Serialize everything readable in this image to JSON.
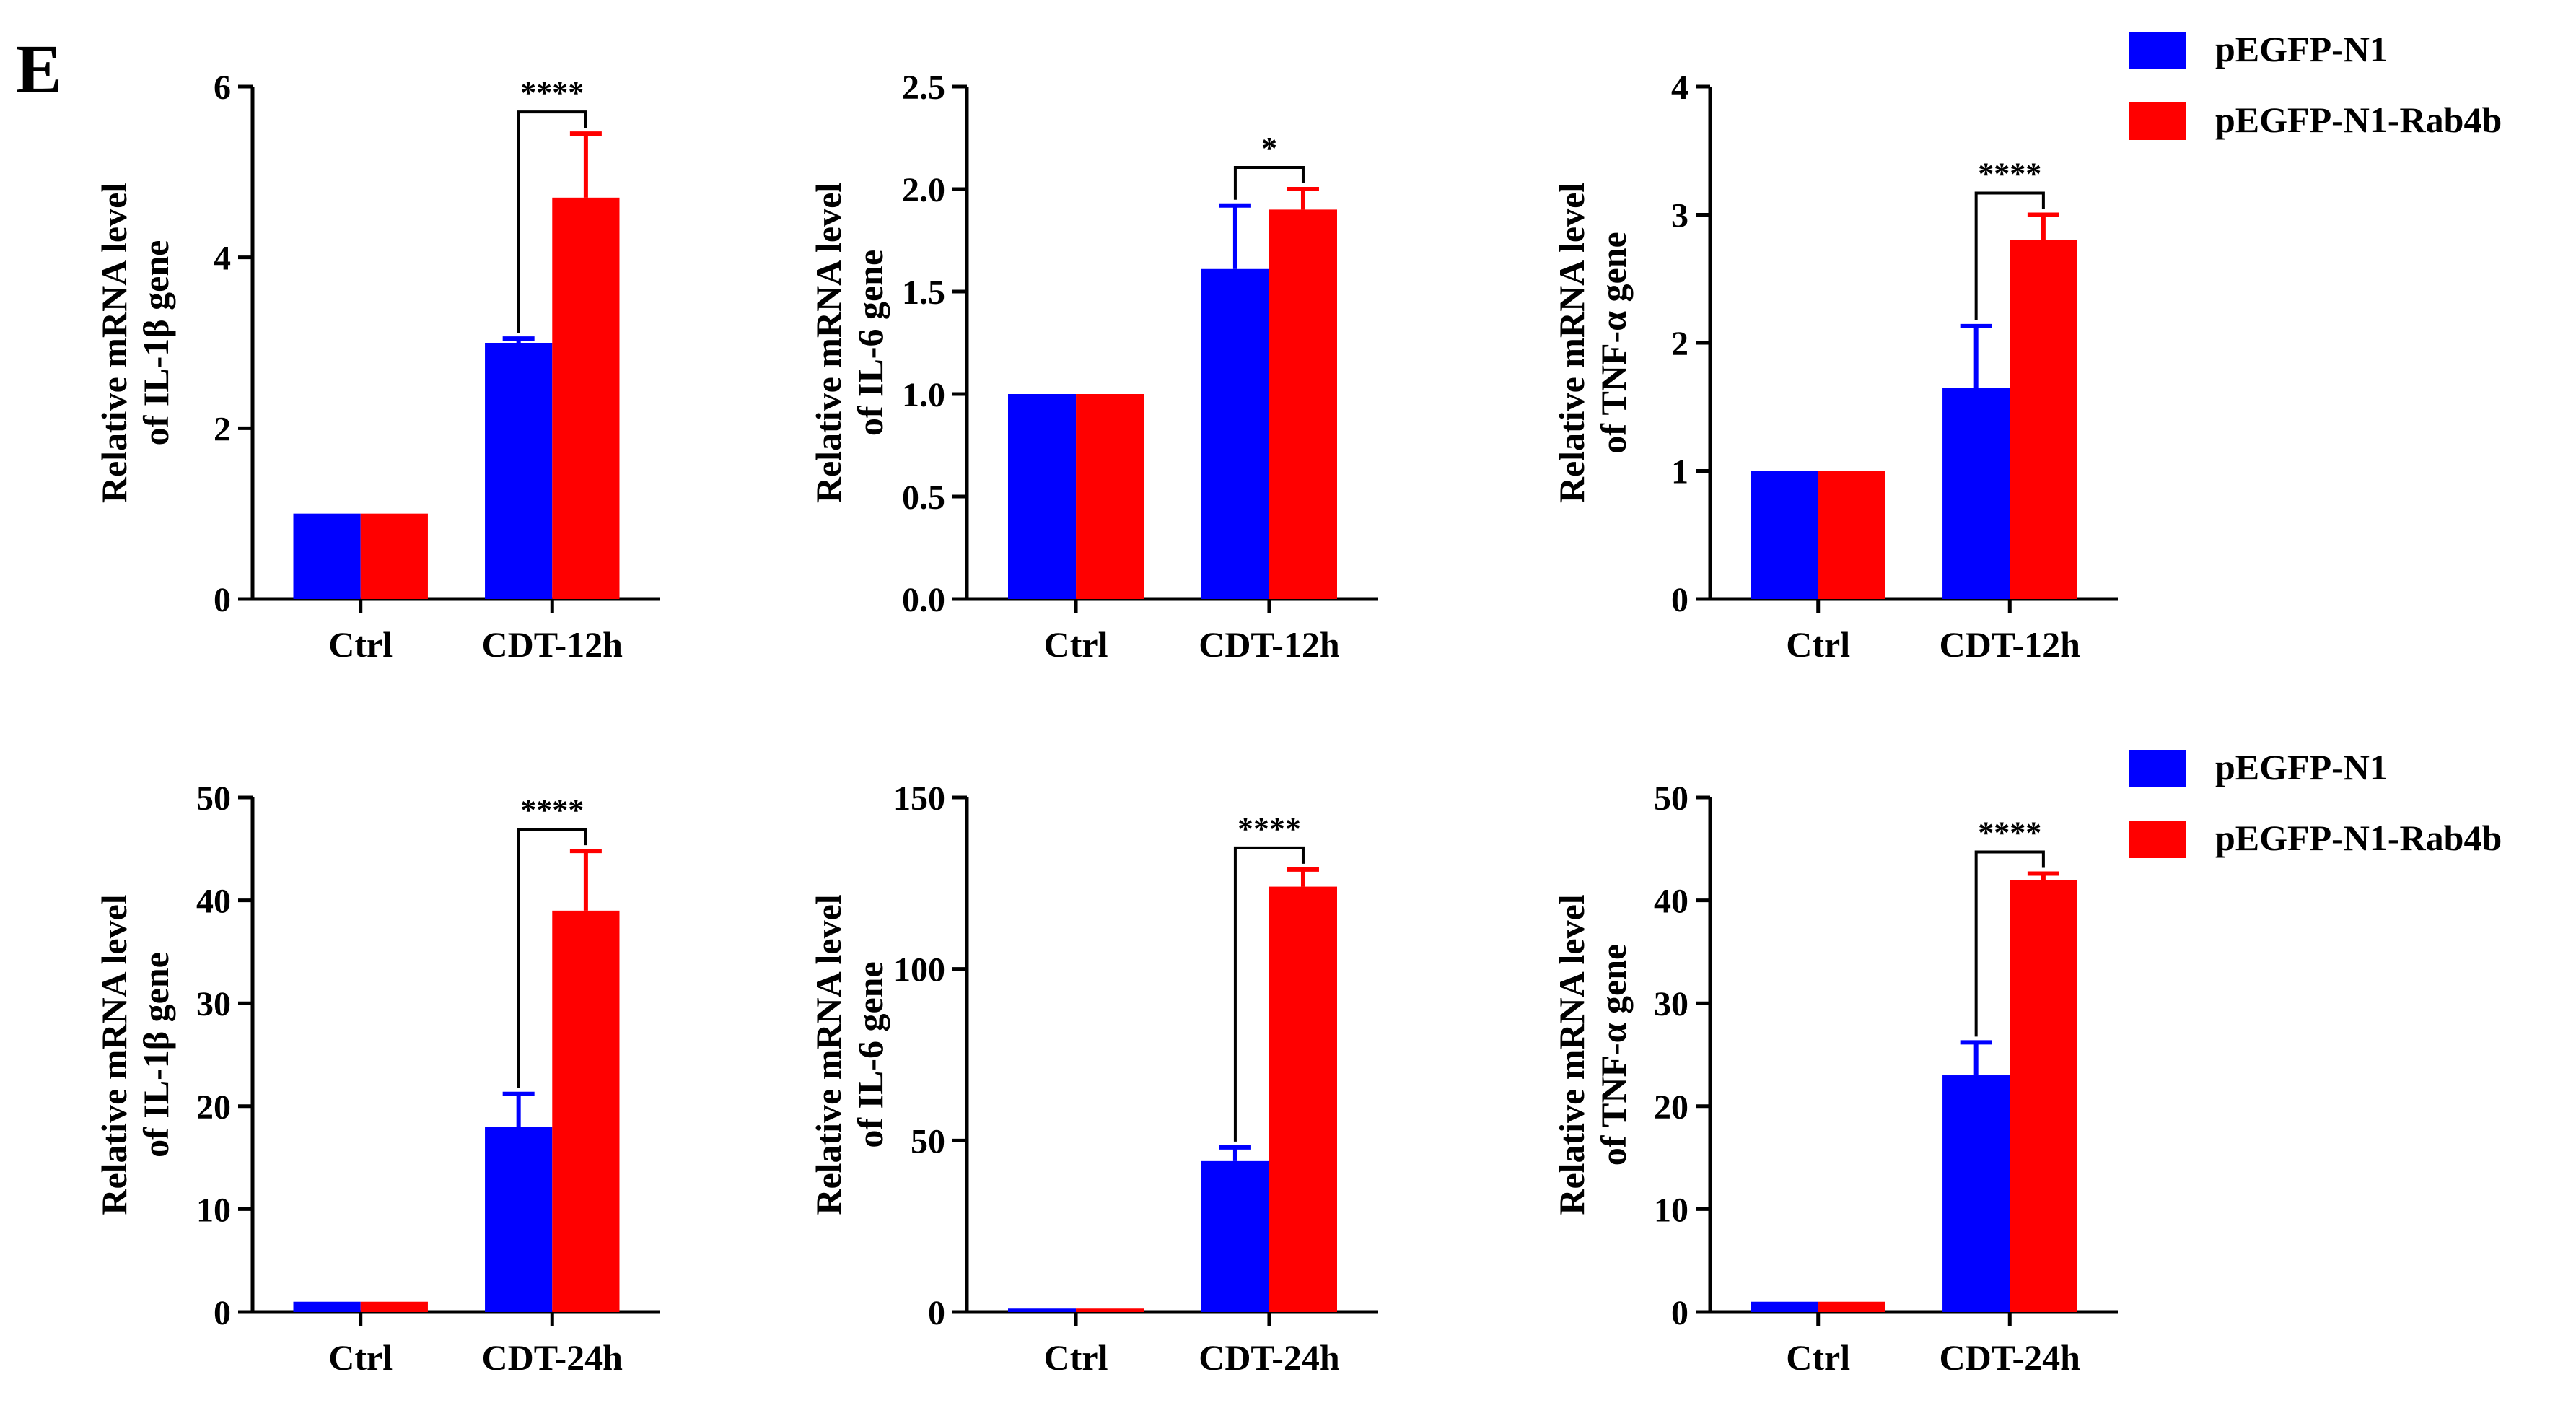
{
  "panel_label": "E",
  "legends": [
    {
      "entries": [
        "pEGFP-N1",
        "pEGFP-N1-Rab4b"
      ]
    },
    {
      "entries": [
        "pEGFP-N1",
        "pEGFP-N1-Rab4b"
      ]
    }
  ],
  "colors": {
    "series1": "#0000ff",
    "series2": "#ff0000",
    "axis": "#000000"
  },
  "chart_data": [
    {
      "type": "bar",
      "ylabel": [
        "Relative mRNA level",
        "of IL-1β gene"
      ],
      "ylim": [
        0,
        6
      ],
      "yticks": [
        0,
        2,
        4,
        6
      ],
      "categories": [
        "Ctrl",
        "CDT-12h"
      ],
      "series": [
        {
          "name": "pEGFP-N1",
          "values": [
            1,
            3.0
          ],
          "errors": [
            0,
            0.05
          ]
        },
        {
          "name": "pEGFP-N1-Rab4b",
          "values": [
            1,
            4.7
          ],
          "errors": [
            0,
            0.75
          ]
        }
      ],
      "significance": {
        "category": "CDT-12h",
        "label": "****"
      }
    },
    {
      "type": "bar",
      "ylabel": [
        "Relative mRNA level",
        "of IL-6 gene"
      ],
      "ylim": [
        0,
        2.5
      ],
      "yticks": [
        "0.0",
        "0.5",
        "1.0",
        "1.5",
        "2.0",
        "2.5"
      ],
      "categories": [
        "Ctrl",
        "CDT-12h"
      ],
      "series": [
        {
          "name": "pEGFP-N1",
          "values": [
            1.0,
            1.61
          ],
          "errors": [
            0,
            0.31
          ]
        },
        {
          "name": "pEGFP-N1-Rab4b",
          "values": [
            1.0,
            1.9
          ],
          "errors": [
            0,
            0.1
          ]
        }
      ],
      "significance": {
        "category": "CDT-12h",
        "label": "*"
      }
    },
    {
      "type": "bar",
      "ylabel": [
        "Relative mRNA level",
        "of TNF-α gene"
      ],
      "ylim": [
        0,
        4
      ],
      "yticks": [
        0,
        1,
        2,
        3,
        4
      ],
      "categories": [
        "Ctrl",
        "CDT-12h"
      ],
      "series": [
        {
          "name": "pEGFP-N1",
          "values": [
            1,
            1.65
          ],
          "errors": [
            0,
            0.48
          ]
        },
        {
          "name": "pEGFP-N1-Rab4b",
          "values": [
            1,
            2.8
          ],
          "errors": [
            0,
            0.2
          ]
        }
      ],
      "significance": {
        "category": "CDT-12h",
        "label": "****"
      }
    },
    {
      "type": "bar",
      "ylabel": [
        "Relative mRNA level",
        "of IL-1β gene"
      ],
      "ylim": [
        0,
        50
      ],
      "yticks": [
        0,
        10,
        20,
        30,
        40,
        50
      ],
      "categories": [
        "Ctrl",
        "CDT-24h"
      ],
      "series": [
        {
          "name": "pEGFP-N1",
          "values": [
            1,
            18
          ],
          "errors": [
            0,
            3.2
          ]
        },
        {
          "name": "pEGFP-N1-Rab4b",
          "values": [
            1,
            39
          ],
          "errors": [
            0,
            5.8
          ]
        }
      ],
      "significance": {
        "category": "CDT-24h",
        "label": "****"
      }
    },
    {
      "type": "bar",
      "ylabel": [
        "Relative mRNA level",
        "of IL-6 gene"
      ],
      "ylim": [
        0,
        150
      ],
      "yticks": [
        0,
        50,
        100,
        150
      ],
      "categories": [
        "Ctrl",
        "CDT-24h"
      ],
      "series": [
        {
          "name": "pEGFP-N1",
          "values": [
            1,
            44
          ],
          "errors": [
            0,
            4
          ]
        },
        {
          "name": "pEGFP-N1-Rab4b",
          "values": [
            1,
            124
          ],
          "errors": [
            0,
            5
          ]
        }
      ],
      "significance": {
        "category": "CDT-24h",
        "label": "****"
      }
    },
    {
      "type": "bar",
      "ylabel": [
        "Relative mRNA level",
        "of TNF-α gene"
      ],
      "ylim": [
        0,
        50
      ],
      "yticks": [
        0,
        10,
        20,
        30,
        40,
        50
      ],
      "categories": [
        "Ctrl",
        "CDT-24h"
      ],
      "series": [
        {
          "name": "pEGFP-N1",
          "values": [
            1,
            23
          ],
          "errors": [
            0,
            3.2
          ]
        },
        {
          "name": "pEGFP-N1-Rab4b",
          "values": [
            1,
            42
          ],
          "errors": [
            0,
            0.6
          ]
        }
      ],
      "significance": {
        "category": "CDT-24h",
        "label": "****"
      }
    }
  ]
}
